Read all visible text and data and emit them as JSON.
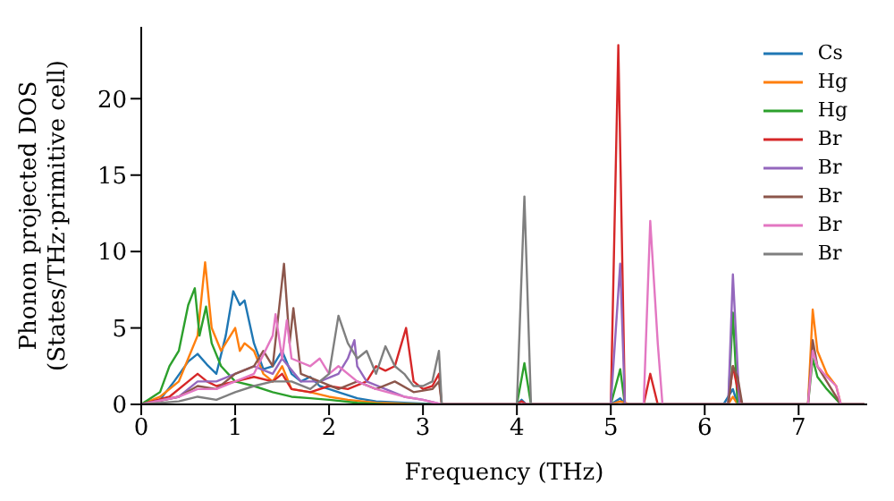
{
  "chart_data": {
    "type": "line",
    "xlabel": "Frequency (THz)",
    "ylabel": "Phonon projected DOS\n(States/THz·primitive cell)",
    "xlim": [
      0,
      7.73
    ],
    "xticks": [
      0,
      1,
      2,
      3,
      4,
      5,
      6,
      7
    ],
    "ylim": [
      0,
      24.7
    ],
    "yticks": [
      0,
      5,
      10,
      15,
      20
    ],
    "legend": "top right",
    "marker": "none",
    "line_style": "solid",
    "series": [
      {
        "name": "Cs",
        "color": "#1f77b4",
        "x": [
          0,
          0.2,
          0.35,
          0.5,
          0.6,
          0.7,
          0.8,
          0.9,
          0.98,
          1.05,
          1.1,
          1.2,
          1.3,
          1.4,
          1.5,
          1.6,
          1.7,
          1.8,
          1.9,
          2.0,
          2.1,
          2.3,
          2.5,
          2.8,
          3.2,
          4.0,
          4.05,
          4.1,
          5.0,
          5.1,
          5.15,
          6.2,
          6.3,
          6.35,
          7.1
        ],
        "values": [
          0,
          0.3,
          1.5,
          2.8,
          3.3,
          2.6,
          2.0,
          4.5,
          7.4,
          6.5,
          6.8,
          4.0,
          2.3,
          2.5,
          3.5,
          2.0,
          1.5,
          1.8,
          1.2,
          1.0,
          0.8,
          0.4,
          0.2,
          0.1,
          0,
          0,
          0.3,
          0,
          0,
          0.4,
          0,
          0,
          1.0,
          0,
          0
        ]
      },
      {
        "name": "Hg",
        "color": "#ff7f0e",
        "x": [
          0,
          0.2,
          0.4,
          0.5,
          0.6,
          0.68,
          0.75,
          0.85,
          0.95,
          1.0,
          1.05,
          1.1,
          1.2,
          1.3,
          1.4,
          1.5,
          1.6,
          1.8,
          2.0,
          2.2,
          2.5,
          3.0,
          5.0,
          5.1,
          5.2,
          6.25,
          6.3,
          6.35,
          7.1,
          7.15,
          7.2,
          7.3,
          7.4,
          7.45,
          7.7
        ],
        "values": [
          0,
          0.5,
          1.5,
          3,
          4.5,
          9.3,
          5,
          3.5,
          4.5,
          5.0,
          3.5,
          4.0,
          3.5,
          2.0,
          1.5,
          2.5,
          1.0,
          0.8,
          0.5,
          0.3,
          0.1,
          0,
          0,
          0.2,
          0,
          0,
          0.5,
          0,
          0,
          6.2,
          3.5,
          2.0,
          1.2,
          0,
          0
        ]
      },
      {
        "name": "Hg",
        "color": "#2ca02c",
        "x": [
          0,
          0.2,
          0.3,
          0.4,
          0.5,
          0.57,
          0.62,
          0.69,
          0.75,
          0.85,
          1.0,
          1.2,
          1.4,
          1.6,
          1.8,
          2.0,
          2.3,
          2.6,
          4.0,
          4.08,
          4.15,
          5.0,
          5.1,
          5.15,
          6.25,
          6.3,
          6.35,
          7.1,
          7.15,
          7.2,
          7.3,
          7.45,
          7.7
        ],
        "values": [
          0,
          0.8,
          2.5,
          3.5,
          6.5,
          7.6,
          4.5,
          6.4,
          4.0,
          2.5,
          1.5,
          1.2,
          0.8,
          0.5,
          0.4,
          0.3,
          0.1,
          0,
          0,
          2.7,
          0,
          0,
          2.3,
          0,
          0,
          6.0,
          0,
          0,
          3,
          1.8,
          1,
          0,
          0
        ]
      },
      {
        "name": "Br",
        "color": "#d62728",
        "x": [
          0,
          0.3,
          0.5,
          0.6,
          0.7,
          0.8,
          1.0,
          1.2,
          1.4,
          1.5,
          1.6,
          1.8,
          2.0,
          2.2,
          2.4,
          2.5,
          2.6,
          2.7,
          2.82,
          2.9,
          3.0,
          3.1,
          3.17,
          3.2,
          4.0,
          4.05,
          4.1,
          5.0,
          5.08,
          5.15,
          5.35,
          5.42,
          5.5,
          6.25,
          6.3,
          6.35,
          6.4,
          7.7
        ],
        "values": [
          0,
          0.5,
          1.5,
          2.0,
          1.5,
          1.2,
          1.5,
          1.8,
          1.5,
          2.0,
          1.0,
          0.8,
          1.2,
          1.0,
          1.5,
          2.5,
          2.2,
          2.5,
          5.0,
          1.5,
          1.0,
          1.2,
          2.0,
          0,
          0,
          0.2,
          0,
          0,
          23.5,
          0,
          0,
          2.0,
          0,
          0,
          2.5,
          1.0,
          0,
          0
        ]
      },
      {
        "name": "Br",
        "color": "#9467bd",
        "x": [
          0,
          0.4,
          0.6,
          0.8,
          1.0,
          1.2,
          1.4,
          1.5,
          1.7,
          1.9,
          2.1,
          2.2,
          2.27,
          2.3,
          2.4,
          2.6,
          2.8,
          3.0,
          3.2,
          5.0,
          5.1,
          5.15,
          6.25,
          6.3,
          6.37,
          7.7
        ],
        "values": [
          0,
          0.5,
          1.5,
          1.5,
          2.0,
          2.5,
          2.0,
          3.0,
          1.5,
          1.5,
          2.0,
          3.0,
          4.2,
          2.5,
          1.5,
          1.0,
          0.5,
          0.3,
          0,
          0,
          9.2,
          0,
          0,
          8.5,
          0,
          0
        ]
      },
      {
        "name": "Br",
        "color": "#8c564b",
        "x": [
          0,
          0.4,
          0.6,
          0.8,
          1.0,
          1.2,
          1.3,
          1.4,
          1.52,
          1.58,
          1.62,
          1.7,
          1.9,
          2.1,
          2.3,
          2.5,
          2.7,
          2.9,
          3.1,
          3.17,
          3.2,
          6.25,
          6.3,
          6.35,
          6.4,
          7.1,
          7.15,
          7.2,
          7.3,
          7.45,
          7.7
        ],
        "values": [
          0,
          0.5,
          1.2,
          1.0,
          2.0,
          2.5,
          3.5,
          2.5,
          9.2,
          4,
          6.3,
          2.0,
          1.5,
          1.0,
          1.5,
          1.0,
          1.5,
          0.8,
          1.0,
          1.5,
          0,
          0,
          2.5,
          1.8,
          0,
          0,
          4.2,
          2.5,
          1.5,
          0,
          0
        ]
      },
      {
        "name": "Br",
        "color": "#e377c2",
        "x": [
          0,
          0.4,
          0.6,
          0.8,
          1.0,
          1.2,
          1.4,
          1.43,
          1.5,
          1.55,
          1.6,
          1.8,
          1.9,
          2.0,
          2.1,
          2.3,
          2.5,
          2.8,
          3.0,
          3.2,
          5.35,
          5.42,
          5.5,
          5.55,
          7.1,
          7.15,
          7.2,
          7.3,
          7.4,
          7.45,
          7.7
        ],
        "values": [
          0,
          0.5,
          1.0,
          1.0,
          1.5,
          2.0,
          4.5,
          5.9,
          3.0,
          5.5,
          3.0,
          2.5,
          3.0,
          2.0,
          2.5,
          1.5,
          1.0,
          0.5,
          0.3,
          0,
          0,
          12.0,
          4.0,
          0,
          0,
          3.5,
          2.5,
          1.8,
          1.2,
          0,
          0
        ]
      },
      {
        "name": "Br",
        "color": "#7f7f7f",
        "x": [
          0,
          0.4,
          0.6,
          0.8,
          1.0,
          1.2,
          1.4,
          1.6,
          1.8,
          2.0,
          2.1,
          2.2,
          2.3,
          2.4,
          2.5,
          2.6,
          2.7,
          2.8,
          2.9,
          3.0,
          3.1,
          3.17,
          3.2,
          4.0,
          4.08,
          4.15,
          7.7
        ],
        "values": [
          0,
          0.2,
          0.5,
          0.3,
          0.8,
          1.2,
          1.5,
          1.5,
          1.0,
          2.0,
          5.8,
          4.0,
          3.0,
          3.5,
          2.0,
          3.8,
          2.5,
          2.0,
          1.2,
          1.2,
          1.5,
          3.5,
          0,
          0,
          13.6,
          0,
          0
        ]
      }
    ]
  }
}
